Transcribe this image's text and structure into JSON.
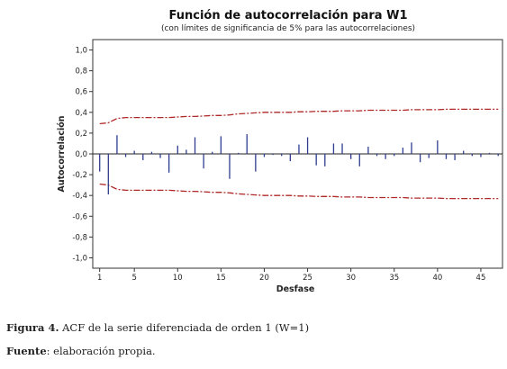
{
  "chart_data": {
    "type": "bar",
    "title": "Función de autocorrelación para W1",
    "subtitle": "(con límites de significancia de 5% para las autocorrelaciones)",
    "xlabel": "Desfase",
    "ylabel": "Autocorrelación",
    "xlim": [
      0.2,
      47.5
    ],
    "ylim": [
      -1.1,
      1.1
    ],
    "yticks": [
      1.0,
      0.8,
      0.6,
      0.4,
      0.2,
      0.0,
      -0.2,
      -0.4,
      -0.6,
      -0.8,
      -1.0
    ],
    "ytick_labels": [
      "1,0",
      "0,8",
      "0,6",
      "0,4",
      "0,2",
      "0,0",
      "-0,2",
      "-0,4",
      "-0,6",
      "-0,8",
      "-1,0"
    ],
    "xticks": [
      1,
      5,
      10,
      15,
      20,
      25,
      30,
      35,
      40,
      45
    ],
    "xtick_labels": [
      "1",
      "5",
      "10",
      "15",
      "20",
      "25",
      "30",
      "35",
      "40",
      "45"
    ],
    "lags": [
      1,
      2,
      3,
      4,
      5,
      6,
      7,
      8,
      9,
      10,
      11,
      12,
      13,
      14,
      15,
      16,
      17,
      18,
      19,
      20,
      21,
      22,
      23,
      24,
      25,
      26,
      27,
      28,
      29,
      30,
      31,
      32,
      33,
      34,
      35,
      36,
      37,
      38,
      39,
      40,
      41,
      42,
      43,
      44,
      45,
      46,
      47
    ],
    "acf": [
      -0.17,
      -0.39,
      0.18,
      -0.03,
      0.03,
      -0.06,
      0.02,
      -0.04,
      -0.18,
      0.08,
      0.04,
      0.16,
      -0.14,
      0.02,
      0.17,
      -0.24,
      0.01,
      0.19,
      -0.17,
      -0.03,
      -0.01,
      -0.02,
      -0.07,
      0.09,
      0.16,
      -0.11,
      -0.12,
      0.1,
      0.1,
      -0.05,
      -0.12,
      0.07,
      -0.02,
      -0.05,
      -0.02,
      0.06,
      0.11,
      -0.08,
      -0.04,
      0.13,
      -0.05,
      -0.06,
      0.03,
      -0.02,
      -0.03,
      0.01,
      -0.02
    ],
    "upper_limit": [
      0.29,
      0.3,
      0.34,
      0.35,
      0.35,
      0.35,
      0.35,
      0.35,
      0.35,
      0.355,
      0.36,
      0.36,
      0.365,
      0.37,
      0.37,
      0.375,
      0.385,
      0.39,
      0.395,
      0.4,
      0.4,
      0.4,
      0.4,
      0.405,
      0.405,
      0.41,
      0.41,
      0.41,
      0.415,
      0.415,
      0.415,
      0.42,
      0.42,
      0.42,
      0.42,
      0.42,
      0.425,
      0.425,
      0.425,
      0.425,
      0.43,
      0.43,
      0.43,
      0.43,
      0.43,
      0.43,
      0.43
    ],
    "lower_limit": [
      -0.29,
      -0.3,
      -0.34,
      -0.35,
      -0.35,
      -0.35,
      -0.35,
      -0.35,
      -0.35,
      -0.355,
      -0.36,
      -0.36,
      -0.365,
      -0.37,
      -0.37,
      -0.375,
      -0.385,
      -0.39,
      -0.395,
      -0.4,
      -0.4,
      -0.4,
      -0.4,
      -0.405,
      -0.405,
      -0.41,
      -0.41,
      -0.41,
      -0.415,
      -0.415,
      -0.415,
      -0.42,
      -0.42,
      -0.42,
      -0.42,
      -0.42,
      -0.425,
      -0.425,
      -0.425,
      -0.425,
      -0.43,
      -0.43,
      -0.43,
      -0.43,
      -0.43,
      -0.43,
      -0.43
    ],
    "colors": {
      "bars": "#2e3d8f",
      "limits": "#b02a2a",
      "axis": "#333333",
      "zero_line": "#222222"
    }
  },
  "figure_caption": {
    "label": "Figura 4.",
    "text": " ACF de la serie diferenciada de orden 1 (W=1)"
  },
  "source_note": {
    "label": "Fuente",
    "text": ": elaboración propia."
  }
}
